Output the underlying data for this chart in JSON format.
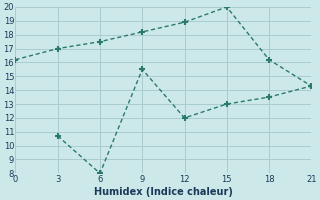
{
  "line1_x": [
    0,
    3,
    6,
    9,
    12,
    15,
    18,
    21
  ],
  "line1_y": [
    16.2,
    17.0,
    17.5,
    18.2,
    18.9,
    20.0,
    16.2,
    14.3
  ],
  "line2_x": [
    3,
    6,
    9,
    12,
    15,
    18,
    21
  ],
  "line2_y": [
    10.7,
    8.0,
    15.5,
    12.0,
    13.0,
    13.5,
    14.3
  ],
  "line_color": "#2a7a6a",
  "bg_color": "#cce8e8",
  "grid_color": "#aacccc",
  "xlabel": "Humidex (Indice chaleur)",
  "xlim": [
    0,
    21
  ],
  "ylim": [
    8,
    20
  ],
  "xticks": [
    0,
    3,
    6,
    9,
    12,
    15,
    18,
    21
  ],
  "yticks": [
    8,
    9,
    10,
    11,
    12,
    13,
    14,
    15,
    16,
    17,
    18,
    19,
    20
  ],
  "marker": "+",
  "markersize": 5,
  "markeredgewidth": 1.5,
  "linewidth": 1.0,
  "font_size_tick": 6,
  "font_size_label": 7,
  "font_color": "#1a3a5a"
}
